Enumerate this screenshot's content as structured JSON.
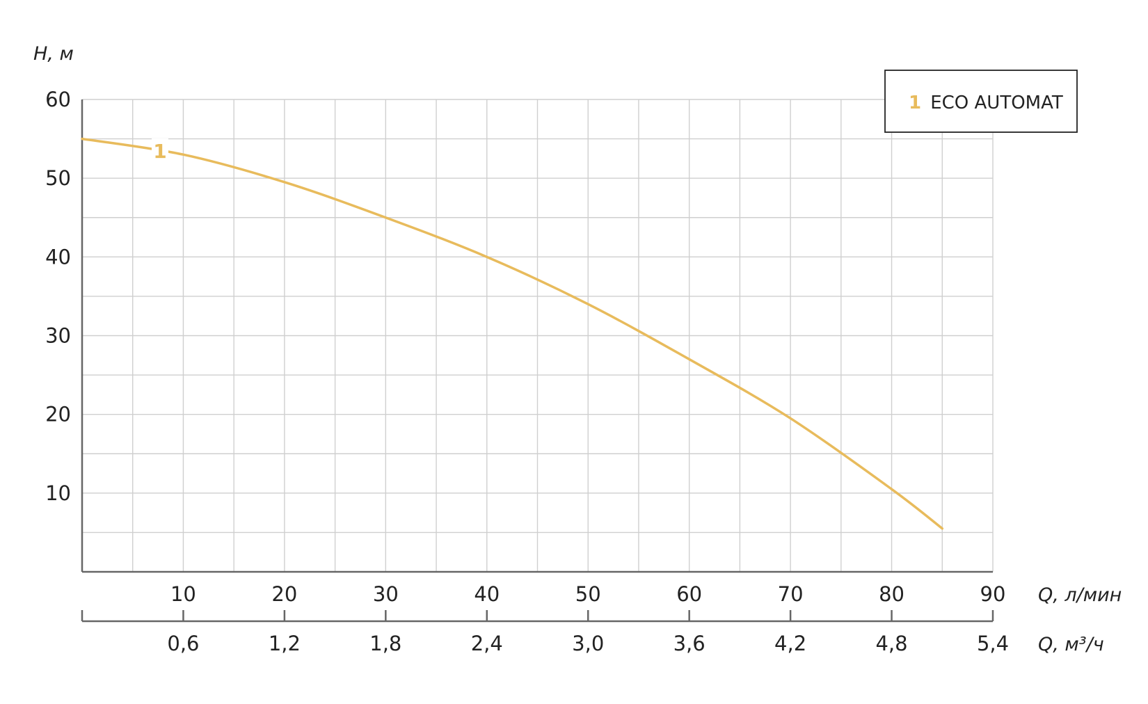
{
  "chart_data": {
    "type": "line",
    "title": "",
    "xlabel": "Q, л/мин",
    "x2label": "Q, м³/ч",
    "ylabel": "H, м",
    "xlim": [
      0,
      90
    ],
    "ylim": [
      0,
      60
    ],
    "x_ticks": [
      "10",
      "20",
      "30",
      "40",
      "50",
      "60",
      "70",
      "80",
      "90"
    ],
    "x2_ticks": [
      "0,6",
      "1,2",
      "1,8",
      "2,4",
      "3,0",
      "3,6",
      "4,2",
      "4,8",
      "5,4"
    ],
    "y_ticks": [
      "10",
      "20",
      "30",
      "40",
      "50",
      "60"
    ],
    "grid": true,
    "legend_position": "top-right",
    "series": [
      {
        "name": "ECO AUTOMAT",
        "label": "1",
        "color": "#E8BB5C",
        "x": [
          0,
          10,
          20,
          30,
          40,
          50,
          60,
          70,
          80,
          85
        ],
        "y": [
          55,
          53,
          49.5,
          45,
          40,
          34,
          27,
          19.5,
          10.5,
          5.5
        ]
      }
    ]
  },
  "legend": {
    "number": "1",
    "text": "ECO AUTOMAT"
  }
}
